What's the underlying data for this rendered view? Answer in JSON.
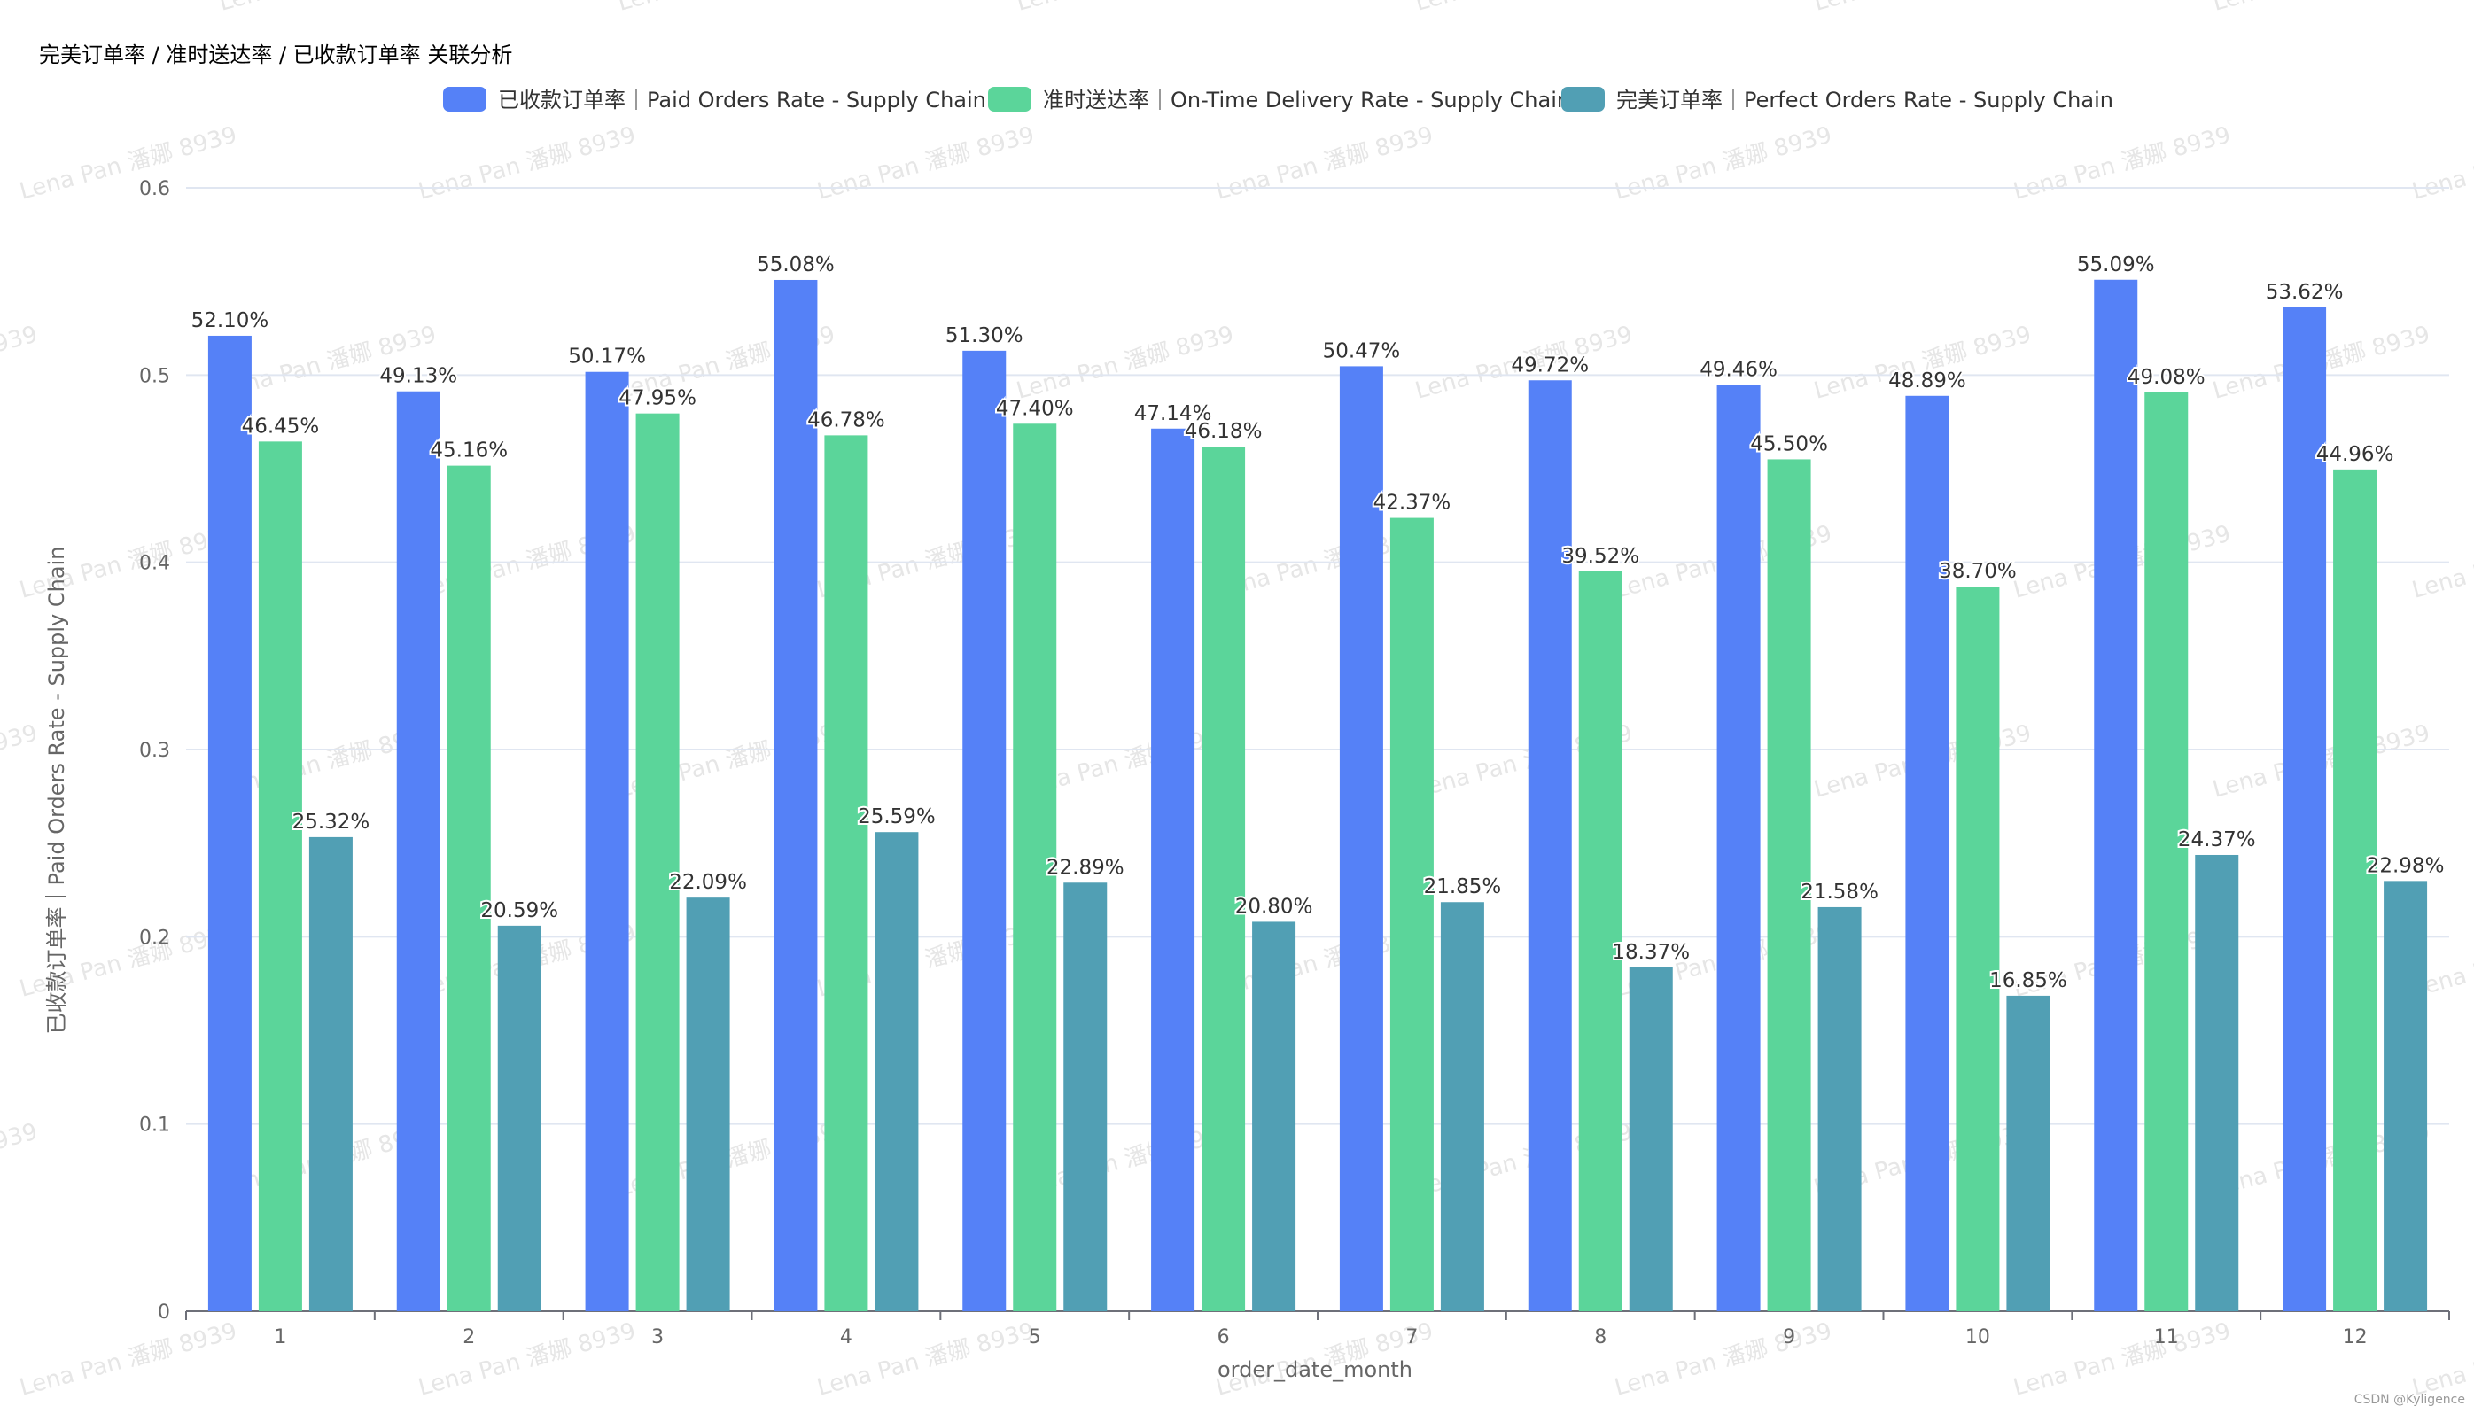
{
  "chart_data": {
    "type": "bar",
    "title": "完美订单率 / 准时送达率 / 已收款订单率 关联分析",
    "xlabel": "order_date_month",
    "ylabel": "已收款订单率｜Paid Orders Rate - Supply Chain",
    "ylim": [
      0,
      0.6
    ],
    "yticks": [
      "0",
      "0.1",
      "0.2",
      "0.3",
      "0.4",
      "0.5",
      "0.6"
    ],
    "grid": "horizontal",
    "legend_position": "top-center",
    "categories": [
      "1",
      "2",
      "3",
      "4",
      "5",
      "6",
      "7",
      "8",
      "9",
      "10",
      "11",
      "12"
    ],
    "series": [
      {
        "name": "已收款订单率｜Paid Orders Rate - Supply Chain",
        "color": "#5581f7",
        "values": [
          0.521,
          0.4913,
          0.5017,
          0.5508,
          0.513,
          0.4714,
          0.5047,
          0.4972,
          0.4946,
          0.4889,
          0.5509,
          0.5362
        ],
        "labels": [
          "52.10%",
          "49.13%",
          "50.17%",
          "55.08%",
          "51.30%",
          "47.14%",
          "50.47%",
          "49.72%",
          "49.46%",
          "48.89%",
          "55.09%",
          "53.62%"
        ]
      },
      {
        "name": "准时送达率｜On-Time Delivery Rate - Supply Chain",
        "color": "#5bd59a",
        "values": [
          0.4645,
          0.4516,
          0.4795,
          0.4678,
          0.474,
          0.4618,
          0.4237,
          0.3952,
          0.455,
          0.387,
          0.4908,
          0.4496
        ],
        "labels": [
          "46.45%",
          "45.16%",
          "47.95%",
          "46.78%",
          "47.40%",
          "46.18%",
          "42.37%",
          "39.52%",
          "45.50%",
          "38.70%",
          "49.08%",
          "44.96%"
        ]
      },
      {
        "name": "完美订单率｜Perfect Orders Rate - Supply Chain",
        "color": "#519fb4",
        "values": [
          0.2532,
          0.2059,
          0.2209,
          0.2559,
          0.2289,
          0.208,
          0.2185,
          0.1837,
          0.2158,
          0.1685,
          0.2437,
          0.2298
        ],
        "labels": [
          "25.32%",
          "20.59%",
          "22.09%",
          "25.59%",
          "22.89%",
          "20.80%",
          "21.85%",
          "18.37%",
          "21.58%",
          "16.85%",
          "24.37%",
          "22.98%"
        ]
      }
    ]
  },
  "watermark_text": "Lena Pan 潘娜 8939",
  "credit_text": "CSDN @Kyligence"
}
